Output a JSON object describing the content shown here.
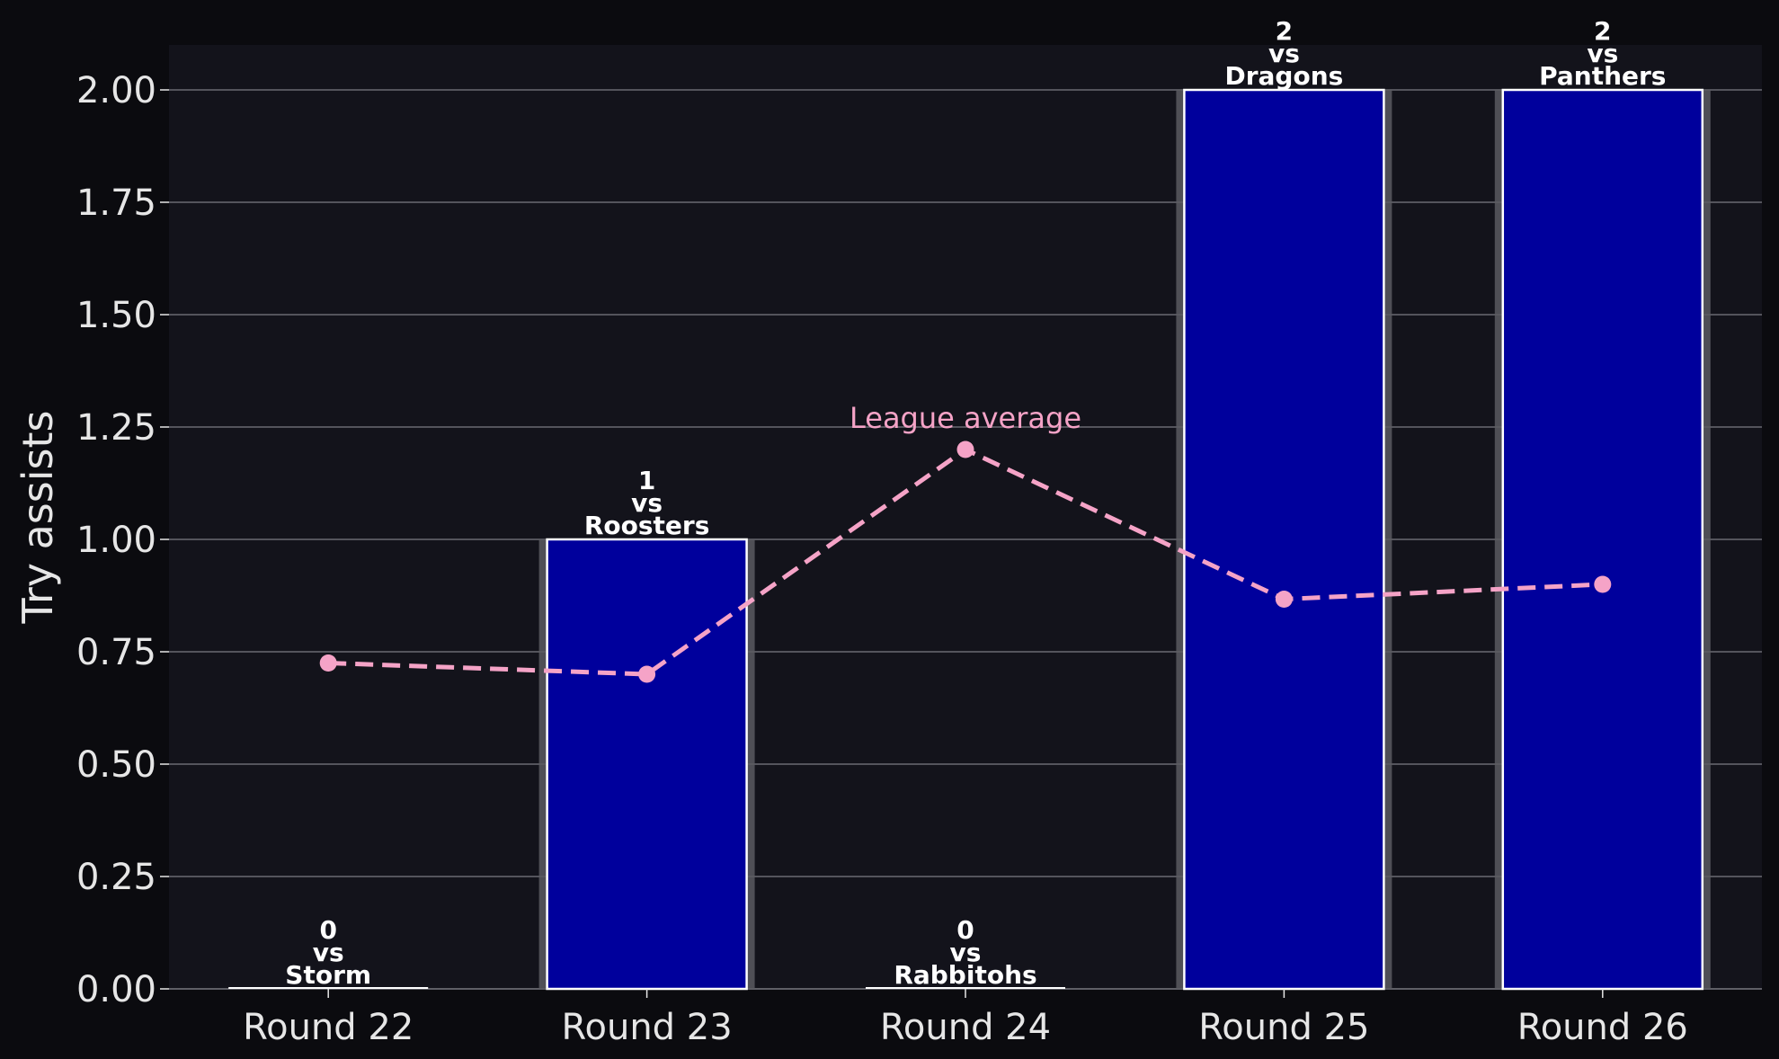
{
  "chart_data": {
    "type": "bar",
    "categories": [
      "Round 22",
      "Round 23",
      "Round 24",
      "Round 25",
      "Round 26"
    ],
    "opponents": [
      "Storm",
      "Roosters",
      "Rabbitohs",
      "Dragons",
      "Panthers"
    ],
    "versus_word": "vs",
    "series": [
      {
        "values": [
          0,
          1,
          0,
          2,
          2
        ],
        "color": "#00009c"
      },
      {
        "name": "League average",
        "type": "line",
        "values": [
          0.725,
          0.7,
          1.2,
          0.867,
          0.9
        ],
        "color": "#f5a3c7",
        "style": "dashed"
      }
    ],
    "title": "",
    "xlabel": "",
    "ylabel": "Try assists",
    "ylim": [
      0,
      2.1
    ],
    "yticks": [
      "0.00",
      "0.25",
      "0.50",
      "0.75",
      "1.00",
      "1.25",
      "1.50",
      "1.75",
      "2.00"
    ],
    "grid": "horizontal",
    "average_label_position": "above-round-24-point",
    "colors": {
      "background": "#0b0b0f",
      "plot_background": "#13131b",
      "grid": "#6b6b72",
      "text": "#e6e6e6",
      "bar_edge": "#ffffff",
      "bar_shadow": "#5a5a60"
    }
  }
}
